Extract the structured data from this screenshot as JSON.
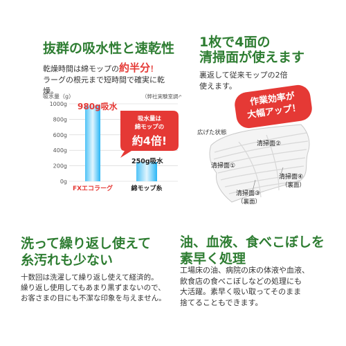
{
  "left_top": {
    "heading": "抜群の吸水性と速乾性",
    "line1_prefix": "乾燥時間は綿モップの",
    "line1_highlight": "約半分",
    "line1_suffix": "！",
    "line2": "ラーグの根元まで短時間で確実に乾燥。"
  },
  "chart": {
    "y_unit": "吸水量（g）",
    "source_note": "（弊社実験室調べ）",
    "callout": [
      "吸水量は",
      "綿モップの",
      "約4倍!"
    ],
    "bar1_label": "980g吸水",
    "bar2_label": "250g吸水"
  },
  "chart_data": {
    "type": "bar",
    "categories": [
      "FXエコラーグ",
      "綿モップ糸"
    ],
    "values": [
      980,
      250
    ],
    "ylabel": "吸水量（g）",
    "ylim": [
      0,
      1000
    ],
    "yticks": [
      "0g",
      "200g",
      "400g",
      "600g",
      "800g",
      "1000g"
    ],
    "colors": [
      "#29b6f6",
      "#29b6f6"
    ]
  },
  "right_top": {
    "heading_line1": "1枚で4面の",
    "heading_line2": "清掃面が使えます",
    "desc_line1": "裏返して従来モップの2倍",
    "desc_line2": "使えます。",
    "badge_line1": "作業効率が",
    "badge_line2": "大幅アップ！",
    "spread_label": "広げた状態",
    "face1": "清掃面①",
    "face2": "清掃面②",
    "face3": "清掃面③",
    "face3_sub": "（裏面）",
    "face4": "清掃面④",
    "face4_sub": "（裏面）"
  },
  "left_bottom": {
    "heading_line1": "洗って繰り返し使えて",
    "heading_line2": "糸汚れも少ない",
    "text_line1": "十数回は洗濯して繰り返し使えて経済的。",
    "text_line2": "繰り返し使用してもあまり黒ずまないので、",
    "text_line3": "お客さまの目にも不潔な印象を与えません。"
  },
  "right_bottom": {
    "heading_line1": "油、血液、食べこぼしを",
    "heading_line2": "素早く処理",
    "text_line1": "工場床の油、病院の床の体液や血液、",
    "text_line2": "飲食店の食べこぼしなどの処理にも",
    "text_line3": "大活躍。素早く吸い取ってそのまま",
    "text_line4": "捨てることもできます。"
  }
}
